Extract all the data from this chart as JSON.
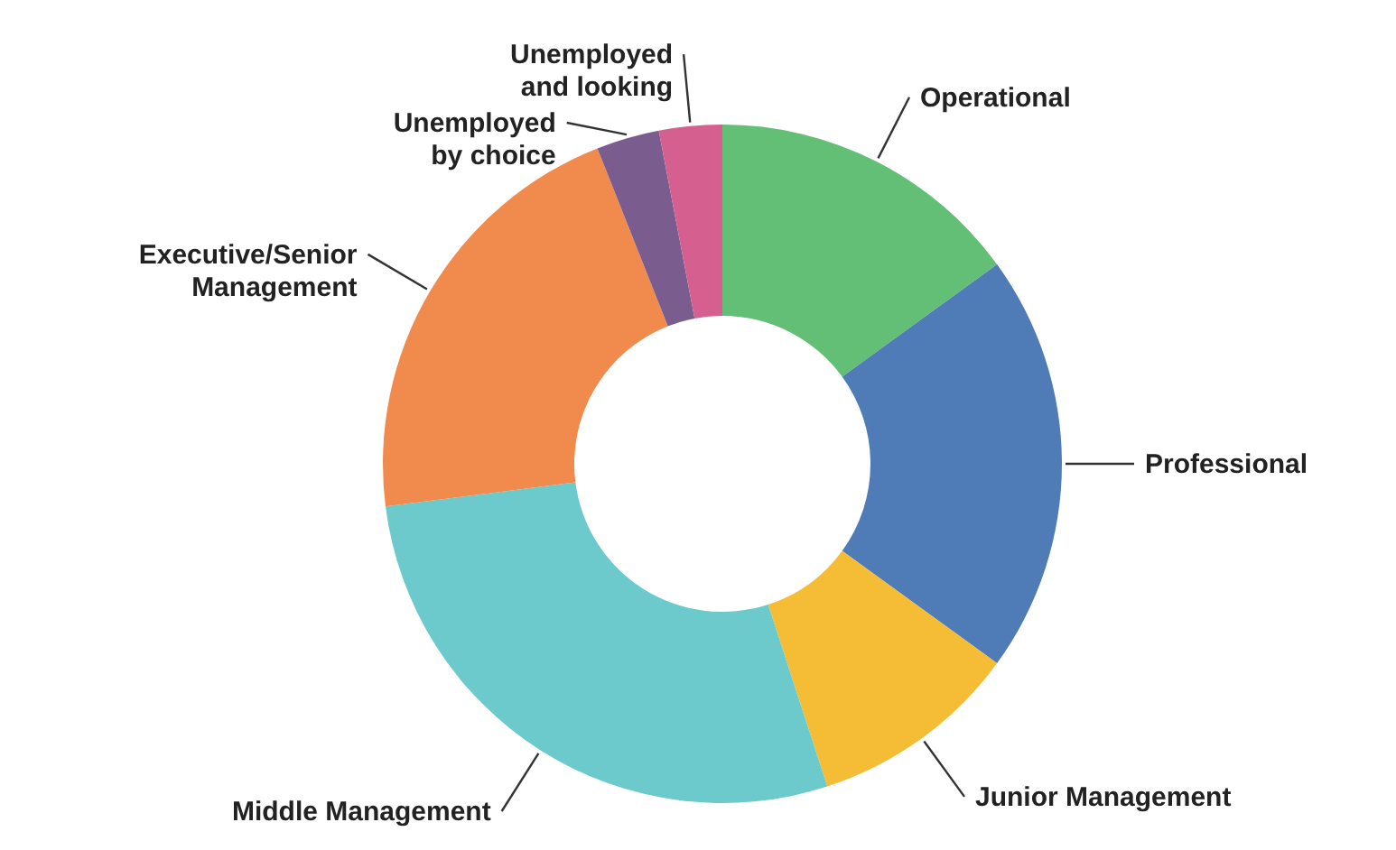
{
  "chart_data": {
    "type": "donut",
    "categories": [
      "Operational",
      "Professional",
      "Junior Management",
      "Middle Management",
      "Executive/Senior Management",
      "Unemployed by choice",
      "Unemployed and looking"
    ],
    "values": [
      15,
      20,
      10,
      28,
      21,
      3,
      3
    ],
    "colors": [
      "#64bf76",
      "#4f7cb6",
      "#f5bd35",
      "#6cc9cc",
      "#f08b4d",
      "#7b5c8e",
      "#d5608f"
    ]
  }
}
